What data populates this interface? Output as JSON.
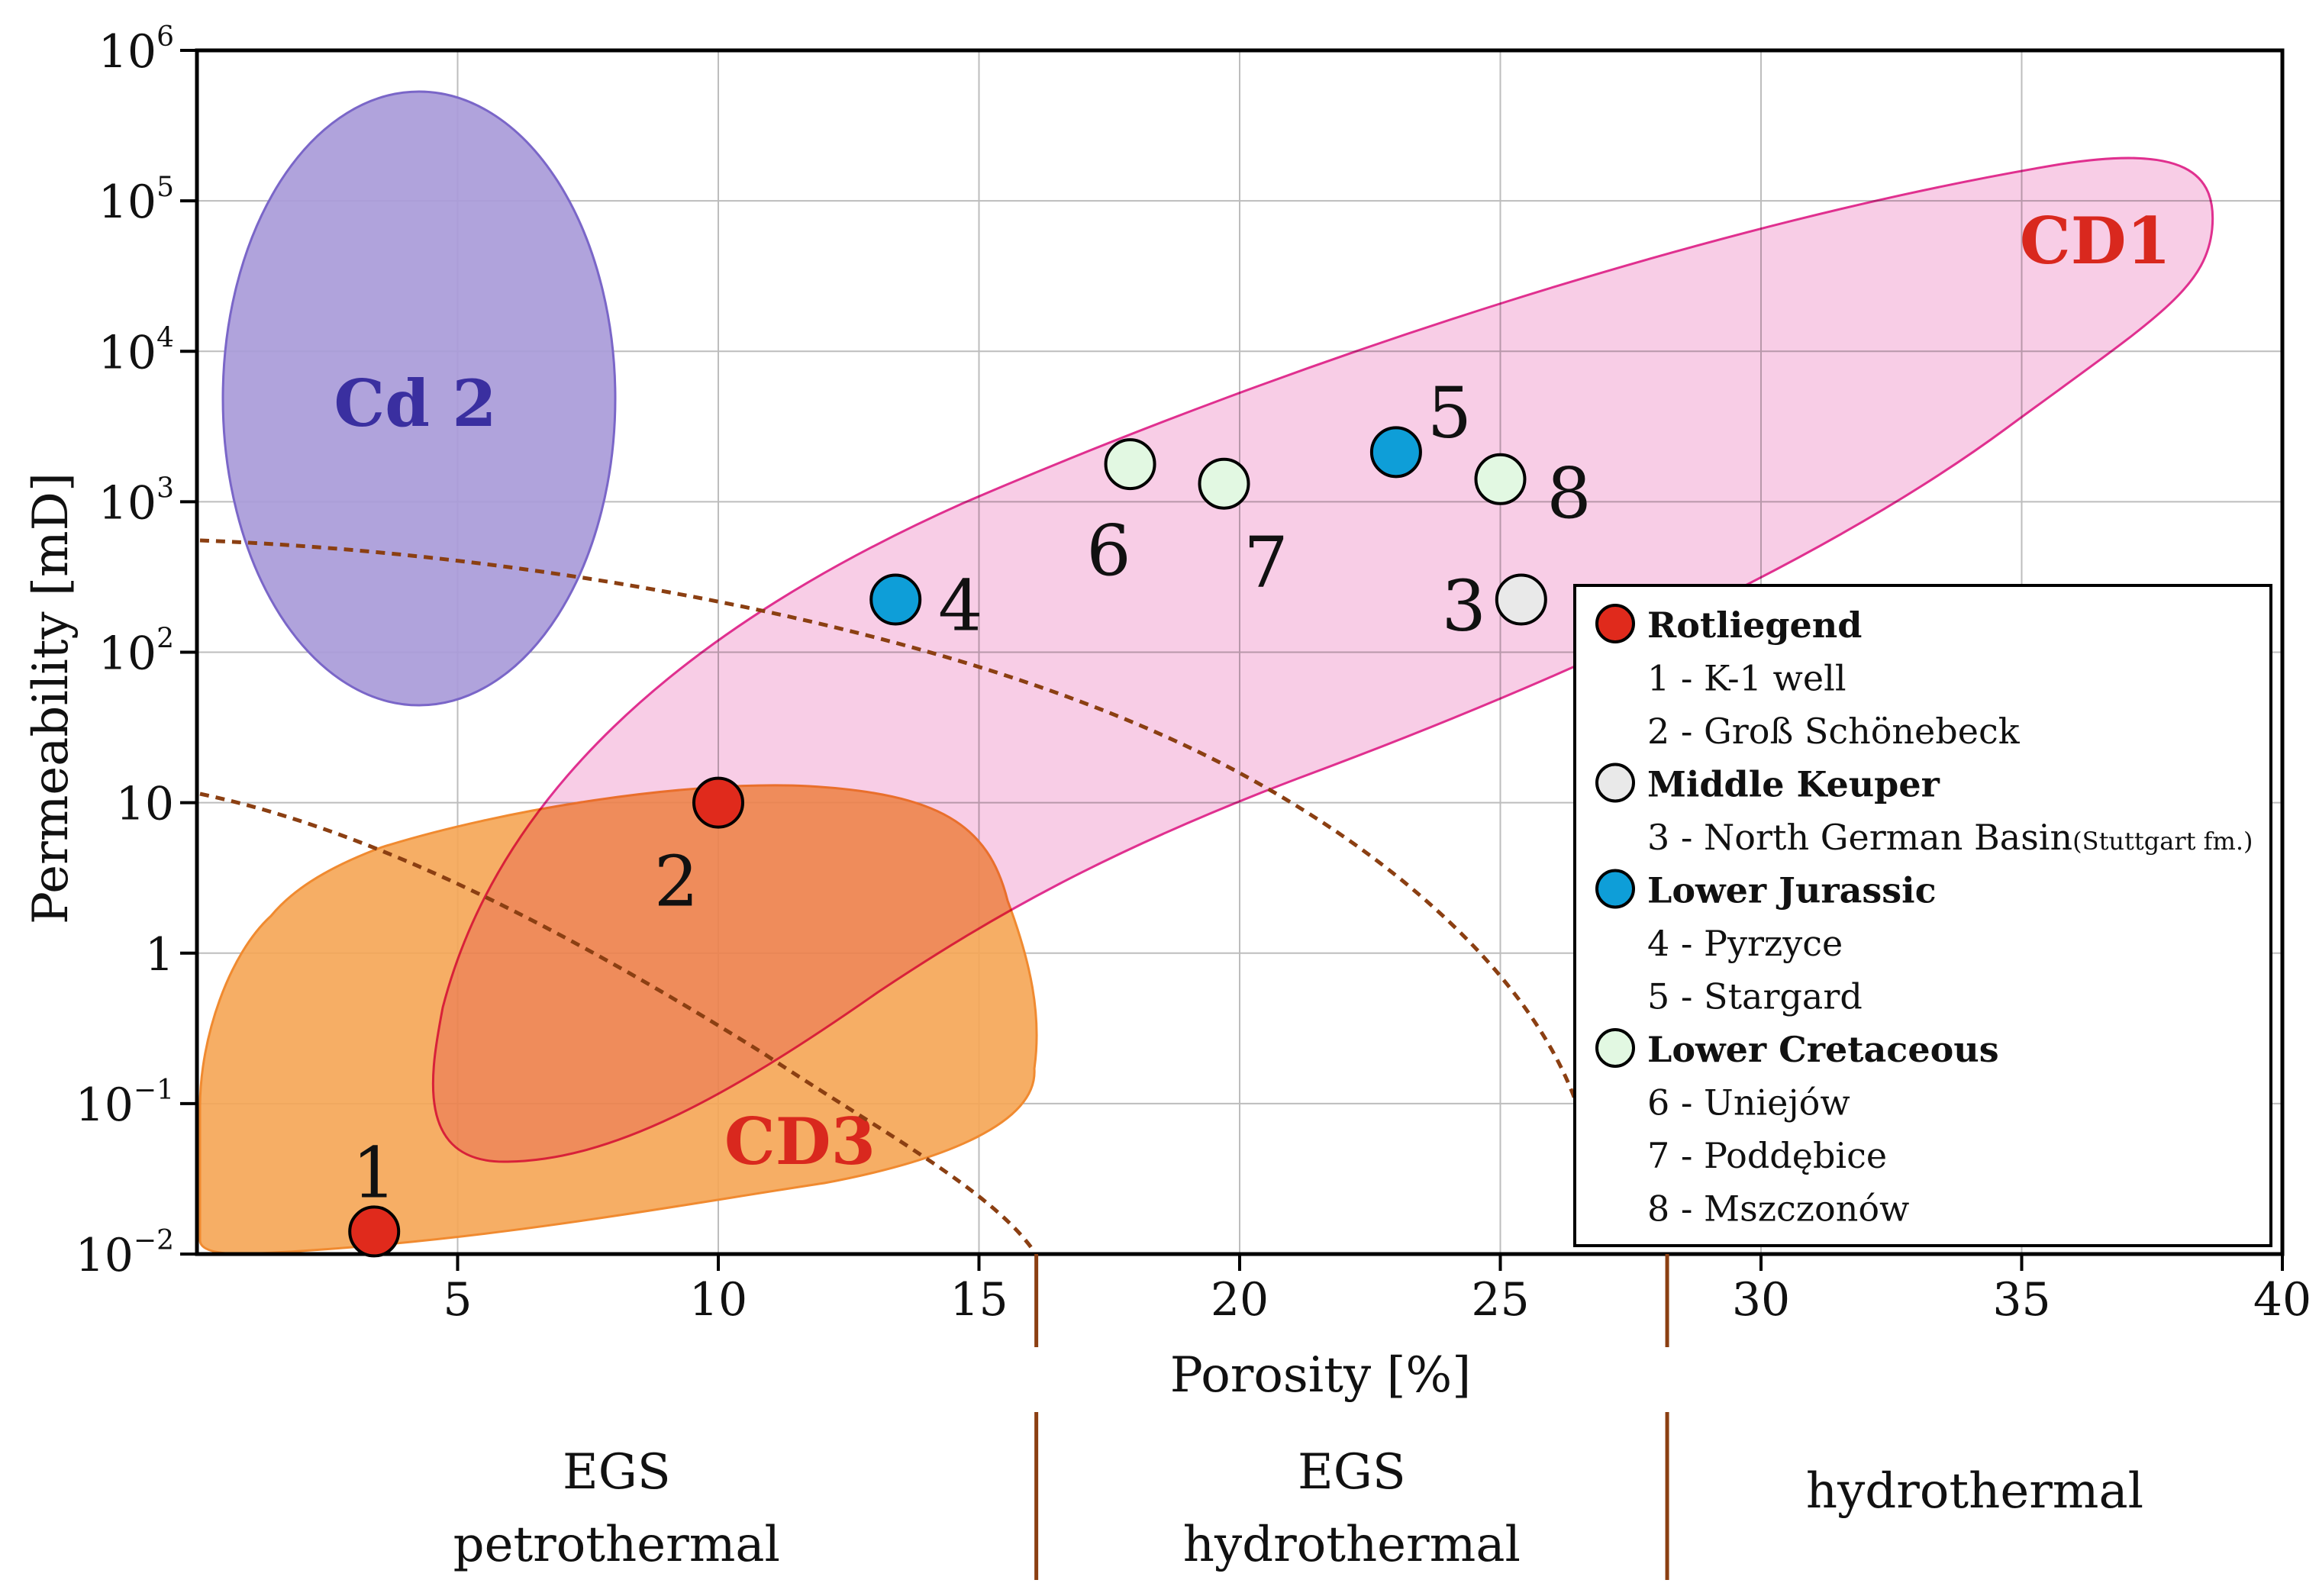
{
  "chart_data": {
    "type": "scatter",
    "title": "",
    "xlabel": "Porosity [%]",
    "ylabel": "Permeability [mD]",
    "xlim": [
      0,
      40
    ],
    "ylim_log10": [
      -2,
      6
    ],
    "x_ticks": [
      {
        "value": 5,
        "label": "5"
      },
      {
        "value": 10,
        "label": "10"
      },
      {
        "value": 15,
        "label": "15"
      },
      {
        "value": 20,
        "label": "20"
      },
      {
        "value": 25,
        "label": "25"
      },
      {
        "value": 30,
        "label": "30"
      },
      {
        "value": 35,
        "label": "35"
      },
      {
        "value": 40,
        "label": "40"
      }
    ],
    "y_ticks": [
      {
        "exp": -2,
        "base": "10",
        "sup": "−2"
      },
      {
        "exp": -1,
        "base": "10",
        "sup": "−1"
      },
      {
        "exp": 0,
        "base": "1",
        "sup": ""
      },
      {
        "exp": 1,
        "base": "10",
        "sup": ""
      },
      {
        "exp": 2,
        "base": "10",
        "sup": "2"
      },
      {
        "exp": 3,
        "base": "10",
        "sup": "3"
      },
      {
        "exp": 4,
        "base": "10",
        "sup": "4"
      },
      {
        "exp": 5,
        "base": "10",
        "sup": "5"
      },
      {
        "exp": 6,
        "base": "10",
        "sup": "6"
      }
    ],
    "grid": true,
    "points": [
      {
        "id": "1",
        "label": "1",
        "group": "Rotliegend",
        "x": 3.4,
        "log10_y": -1.85
      },
      {
        "id": "2",
        "label": "2",
        "group": "Rotliegend",
        "x": 10.0,
        "log10_y": 1.0
      },
      {
        "id": "3",
        "label": "3",
        "group": "Middle Keuper",
        "x": 25.4,
        "log10_y": 2.35
      },
      {
        "id": "4",
        "label": "4",
        "group": "Lower Jurassic",
        "x": 13.4,
        "log10_y": 2.35
      },
      {
        "id": "5",
        "label": "5",
        "group": "Lower Jurassic",
        "x": 23.0,
        "log10_y": 3.33
      },
      {
        "id": "6",
        "label": "6",
        "group": "Lower Cretaceous",
        "x": 17.9,
        "log10_y": 3.25
      },
      {
        "id": "7",
        "label": "7",
        "group": "Lower Cretaceous",
        "x": 19.7,
        "log10_y": 3.12
      },
      {
        "id": "8",
        "label": "8",
        "group": "Lower Cretaceous",
        "x": 25.0,
        "log10_y": 3.15
      }
    ],
    "regions": [
      {
        "name": "Cd 2",
        "color": "#a99bd9",
        "stroke": "#7a66c8",
        "label_color": "#3a2fa0"
      },
      {
        "name": "CD1",
        "color": "#f7c4e2",
        "stroke": "#e0308f",
        "label_color": "#d9281e"
      },
      {
        "name": "CD3",
        "color": "#f5a554",
        "stroke": "#f08a30",
        "label_color": "#d9281e"
      }
    ],
    "dashed_curves": 2,
    "legend": {
      "position": "right",
      "entries": [
        {
          "label": "Rotliegend",
          "bold": true,
          "color": "#e02a1c"
        },
        {
          "label": "1 - K-1 well",
          "bold": false
        },
        {
          "label": "2 - Groß Schönebeck",
          "bold": false
        },
        {
          "label": "Middle Keuper",
          "bold": true,
          "color": "#e9e9e9"
        },
        {
          "label": "3 - North German Basin",
          "bold": false,
          "suffix": "(Stuttgart fm.)"
        },
        {
          "label": "Lower Jurassic",
          "bold": true,
          "color": "#0e9ed8"
        },
        {
          "label": "4 - Pyrzyce",
          "bold": false
        },
        {
          "label": "5 - Stargard",
          "bold": false
        },
        {
          "label": "Lower Cretaceous",
          "bold": true,
          "color": "#e2f8e2"
        },
        {
          "label": "6 - Uniejów",
          "bold": false
        },
        {
          "label": "7 - Poddębice",
          "bold": false
        },
        {
          "label": "8 - Mszczonów",
          "bold": false
        }
      ]
    },
    "zones": [
      {
        "lines": [
          "EGS",
          "petrothermal"
        ],
        "x_from": 0,
        "x_to": 16.1
      },
      {
        "lines": [
          "EGS",
          "hydrothermal"
        ],
        "x_from": 16.1,
        "x_to": 28.2
      },
      {
        "lines": [
          "hydrothermal"
        ],
        "x_from": 28.2,
        "x_to": 40
      }
    ],
    "zone_dividers_x": [
      16.1,
      28.2
    ],
    "colors": {
      "divider": "#8b3f12",
      "dashed": "#8b3f12",
      "grid": "#bdbdbd"
    }
  }
}
